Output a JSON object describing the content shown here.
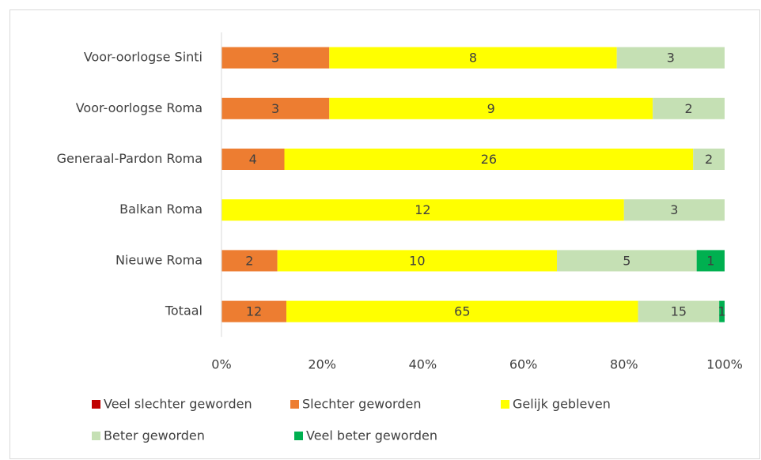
{
  "chart_data": {
    "type": "bar",
    "orientation": "horizontal",
    "stacking": "percent",
    "categories": [
      "Voor-oorlogse Sinti",
      "Voor-oorlogse Roma",
      "Generaal-Pardon Roma",
      "Balkan Roma",
      "Nieuwe Roma",
      "Totaal"
    ],
    "series": [
      {
        "name": "Veel slechter geworden",
        "color": "#c00000",
        "values": [
          0,
          0,
          0,
          0,
          0,
          0
        ]
      },
      {
        "name": "Slechter geworden",
        "color": "#ed7d31",
        "values": [
          3,
          3,
          4,
          0,
          2,
          12
        ]
      },
      {
        "name": "Gelijk gebleven",
        "color": "#ffff00",
        "values": [
          8,
          9,
          26,
          12,
          10,
          65
        ]
      },
      {
        "name": "Beter geworden",
        "color": "#c5e0b4",
        "values": [
          3,
          2,
          2,
          3,
          5,
          15
        ]
      },
      {
        "name": "Veel beter geworden",
        "color": "#00b050",
        "values": [
          0,
          0,
          0,
          0,
          1,
          1
        ]
      }
    ],
    "xlim": [
      0,
      100
    ],
    "xticks": [
      {
        "value": 0,
        "label": "0%"
      },
      {
        "value": 20,
        "label": "20%"
      },
      {
        "value": 40,
        "label": "40%"
      },
      {
        "value": 60,
        "label": "60%"
      },
      {
        "value": 80,
        "label": "80%"
      },
      {
        "value": 100,
        "label": "100%"
      }
    ],
    "grid": false,
    "legend": "bottom"
  }
}
